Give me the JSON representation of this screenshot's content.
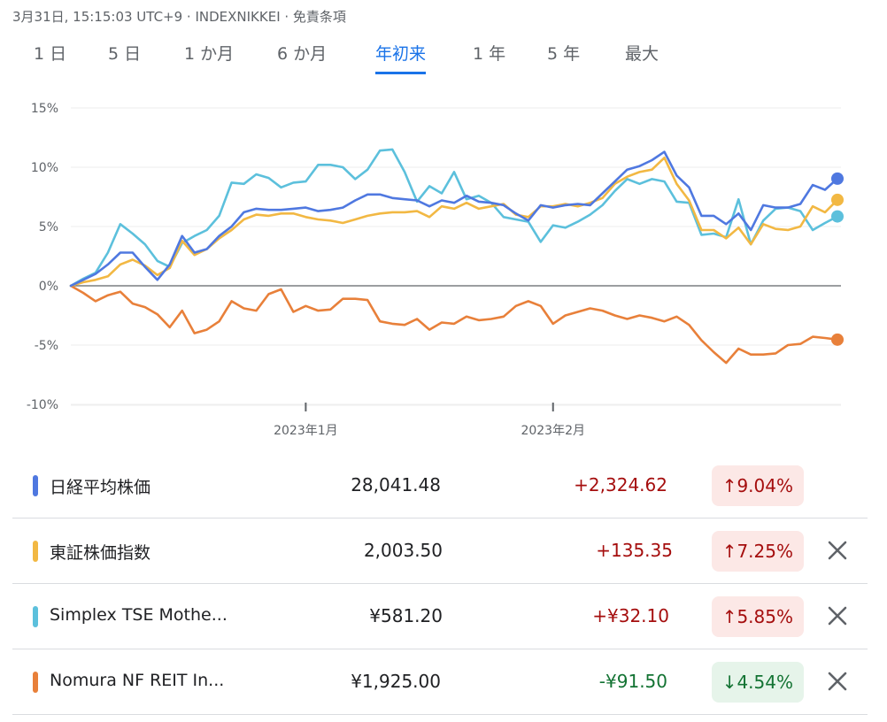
{
  "header": {
    "meta": "3月31日, 15:15:03 UTC+9 · INDEXNIKKEI · 免責条項"
  },
  "tabs": [
    {
      "label": "1 日"
    },
    {
      "label": "5 日"
    },
    {
      "label": "1 か月"
    },
    {
      "label": "6 か月"
    },
    {
      "label": "年初来",
      "active": true
    },
    {
      "label": "1 年"
    },
    {
      "label": "5 年"
    },
    {
      "label": "最大"
    }
  ],
  "colors": {
    "nikkei": "#4f78e0",
    "topix": "#f2b843",
    "mothers": "#5cc0dc",
    "reit": "#e8803a",
    "up": "#a50e0e",
    "down": "#137333"
  },
  "chart_data": {
    "type": "line",
    "ylim": [
      -10,
      15
    ],
    "yticks": [
      "15%",
      "10%",
      "5%",
      "0%",
      "-5%",
      "-10%"
    ],
    "ytick_values": [
      15,
      10,
      5,
      0,
      -5,
      -10
    ],
    "xticks": [
      {
        "label": "2023年1月",
        "index": 19
      },
      {
        "label": "2023年2月",
        "index": 39
      }
    ],
    "point_count": 63,
    "series": [
      {
        "name": "日経平均株価",
        "color": "#4f78e0",
        "values": [
          0,
          0.5,
          1.0,
          1.8,
          2.8,
          2.8,
          1.6,
          0.5,
          1.8,
          4.2,
          2.8,
          3.1,
          4.2,
          5.0,
          6.2,
          6.5,
          6.4,
          6.4,
          6.5,
          6.6,
          6.3,
          6.4,
          6.6,
          7.2,
          7.7,
          7.7,
          7.4,
          7.3,
          7.2,
          6.7,
          7.2,
          7.0,
          7.6,
          7.1,
          7.0,
          6.8,
          6.1,
          5.5,
          6.8,
          6.6,
          6.8,
          6.9,
          6.8,
          7.8,
          8.8,
          9.8,
          10.1,
          10.6,
          11.3,
          9.3,
          8.3,
          5.9,
          5.9,
          5.2,
          6.1,
          4.7,
          6.8,
          6.6,
          6.6,
          6.9,
          8.5,
          8.1,
          9.04
        ]
      },
      {
        "name": "東証株価指数",
        "color": "#f2b843",
        "values": [
          0,
          0.3,
          0.5,
          0.8,
          1.8,
          2.2,
          1.7,
          0.9,
          1.5,
          3.8,
          2.6,
          3.1,
          4.0,
          4.7,
          5.6,
          6.0,
          5.9,
          6.1,
          6.1,
          5.8,
          5.6,
          5.5,
          5.3,
          5.6,
          5.9,
          6.1,
          6.2,
          6.2,
          6.3,
          5.8,
          6.7,
          6.5,
          7.0,
          6.5,
          6.7,
          6.9,
          6.0,
          5.8,
          6.7,
          6.7,
          6.9,
          6.7,
          7.0,
          7.4,
          8.6,
          9.2,
          9.6,
          9.8,
          10.8,
          8.6,
          7.2,
          4.7,
          4.7,
          4.0,
          4.9,
          3.5,
          5.2,
          4.8,
          4.7,
          5.0,
          6.7,
          6.2,
          7.25
        ]
      },
      {
        "name": "Simplex TSE Mothe...",
        "color": "#5cc0dc",
        "values": [
          0,
          0.6,
          1.1,
          2.8,
          5.2,
          4.4,
          3.5,
          2.1,
          1.6,
          3.6,
          4.2,
          4.7,
          5.9,
          8.7,
          8.6,
          9.4,
          9.1,
          8.3,
          8.7,
          8.8,
          10.2,
          10.2,
          10.0,
          9.0,
          9.8,
          11.4,
          11.5,
          9.6,
          7.1,
          8.4,
          7.8,
          9.6,
          7.3,
          7.6,
          7.0,
          5.8,
          5.6,
          5.4,
          3.7,
          5.1,
          4.9,
          5.4,
          6.0,
          6.8,
          8.0,
          9.0,
          8.6,
          9.0,
          8.8,
          7.1,
          7.0,
          4.3,
          4.4,
          4.1,
          7.3,
          3.5,
          5.5,
          6.5,
          6.6,
          6.3,
          4.7,
          5.3,
          5.85
        ]
      },
      {
        "name": "Nomura NF REIT In...",
        "color": "#e8803a",
        "values": [
          0,
          -0.6,
          -1.3,
          -0.8,
          -0.5,
          -1.5,
          -1.8,
          -2.4,
          -3.5,
          -2.1,
          -4.0,
          -3.7,
          -3.0,
          -1.3,
          -1.9,
          -2.1,
          -0.7,
          -0.3,
          -2.2,
          -1.7,
          -2.1,
          -2.0,
          -1.1,
          -1.1,
          -1.2,
          -3.0,
          -3.2,
          -3.3,
          -2.8,
          -3.7,
          -3.1,
          -3.2,
          -2.6,
          -2.9,
          -2.8,
          -2.6,
          -1.7,
          -1.3,
          -1.7,
          -3.2,
          -2.5,
          -2.2,
          -1.9,
          -2.1,
          -2.5,
          -2.8,
          -2.5,
          -2.7,
          -3.0,
          -2.6,
          -3.3,
          -4.6,
          -5.6,
          -6.5,
          -5.3,
          -5.8,
          -5.8,
          -5.7,
          -5.0,
          -4.9,
          -4.3,
          -4.4,
          -4.54
        ]
      }
    ]
  },
  "rows": [
    {
      "name": "日経平均株価",
      "price": "28,041.48",
      "change": "+2,324.62",
      "pct": "↑9.04%",
      "dir": "up",
      "removable": false
    },
    {
      "name": "東証株価指数",
      "price": "2,003.50",
      "change": "+135.35",
      "pct": "↑7.25%",
      "dir": "up",
      "removable": true
    },
    {
      "name": "Simplex TSE Mothe...",
      "price": "¥581.20",
      "change": "+¥32.10",
      "pct": "↑5.85%",
      "dir": "up",
      "removable": true
    },
    {
      "name": "Nomura NF REIT In...",
      "price": "¥1,925.00",
      "change": "-¥91.50",
      "pct": "↓4.54%",
      "dir": "down",
      "removable": true
    }
  ]
}
